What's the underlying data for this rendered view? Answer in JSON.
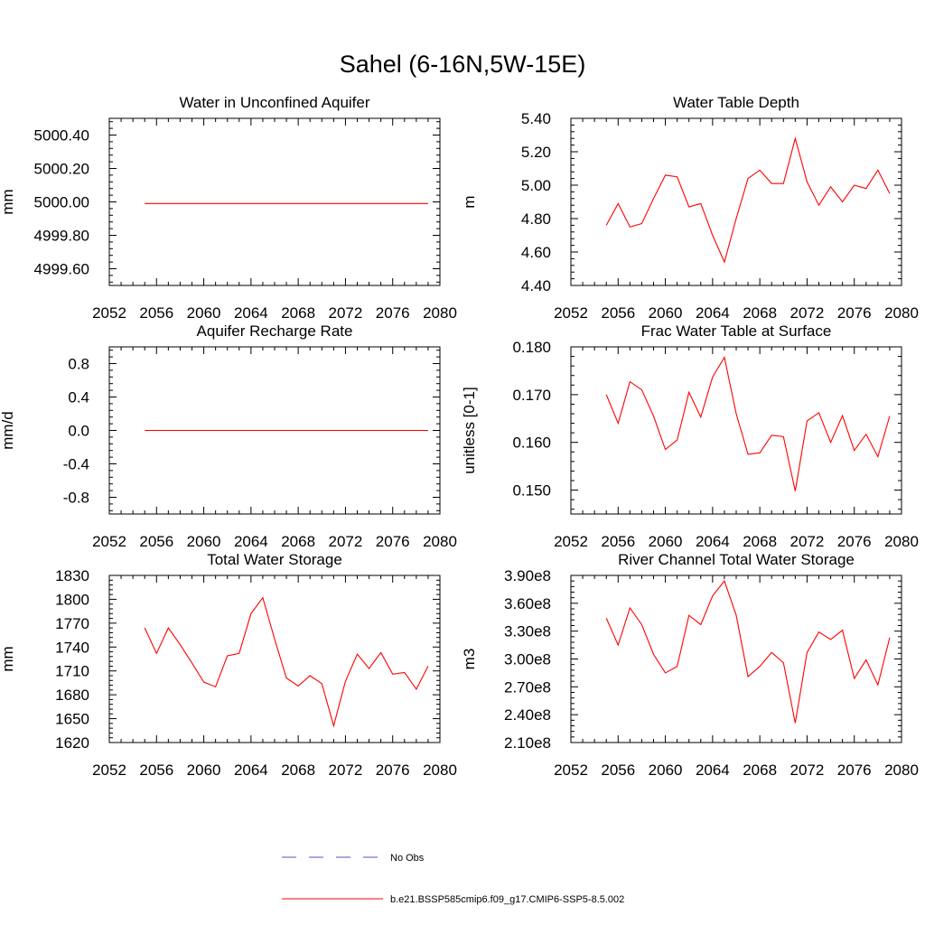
{
  "title": "Sahel (6-16N,5W-15E)",
  "chart_data": [
    {
      "type": "line",
      "title": "Water in Unconfined Aquifer",
      "ylabel": "mm",
      "xlim": [
        2052,
        2080
      ],
      "ylim": [
        4999.5,
        5000.5
      ],
      "xticks": [
        2052,
        2056,
        2060,
        2064,
        2068,
        2072,
        2076,
        2080
      ],
      "yticks": [
        4999.6,
        4999.8,
        5000.0,
        5000.2,
        5000.4
      ],
      "yticklabels": [
        "4999.60",
        "4999.80",
        "5000.00",
        "5000.20",
        "5000.40"
      ],
      "x": [
        2055,
        2056,
        2057,
        2058,
        2059,
        2060,
        2061,
        2062,
        2063,
        2064,
        2065,
        2066,
        2067,
        2068,
        2069,
        2070,
        2071,
        2072,
        2073,
        2074,
        2075,
        2076,
        2077,
        2078,
        2079
      ],
      "series": [
        {
          "name": "b.e21.BSSP585cmip6.f09_g17.CMIP6-SSP5-8.5.002",
          "color": "#ff0000",
          "values": [
            4999.99,
            4999.99,
            4999.99,
            4999.99,
            4999.99,
            4999.99,
            4999.99,
            4999.99,
            4999.99,
            4999.99,
            4999.99,
            4999.99,
            4999.99,
            4999.99,
            4999.99,
            4999.99,
            4999.99,
            4999.99,
            4999.99,
            4999.99,
            4999.99,
            4999.99,
            4999.99,
            4999.99,
            4999.99
          ]
        }
      ]
    },
    {
      "type": "line",
      "title": "Water Table Depth",
      "ylabel": "m",
      "xlim": [
        2052,
        2080
      ],
      "ylim": [
        4.4,
        5.4
      ],
      "xticks": [
        2052,
        2056,
        2060,
        2064,
        2068,
        2072,
        2076,
        2080
      ],
      "yticks": [
        4.4,
        4.6,
        4.8,
        5.0,
        5.2,
        5.4
      ],
      "yticklabels": [
        "4.40",
        "4.60",
        "4.80",
        "5.00",
        "5.20",
        "5.40"
      ],
      "x": [
        2055,
        2056,
        2057,
        2058,
        2059,
        2060,
        2061,
        2062,
        2063,
        2064,
        2065,
        2066,
        2067,
        2068,
        2069,
        2070,
        2071,
        2072,
        2073,
        2074,
        2075,
        2076,
        2077,
        2078,
        2079
      ],
      "series": [
        {
          "name": "b.e21.BSSP585cmip6.f09_g17.CMIP6-SSP5-8.5.002",
          "color": "#ff0000",
          "values": [
            4.76,
            4.89,
            4.75,
            4.77,
            4.92,
            5.06,
            5.05,
            4.87,
            4.89,
            4.7,
            4.54,
            4.8,
            5.04,
            5.09,
            5.01,
            5.01,
            5.28,
            5.02,
            4.88,
            4.99,
            4.9,
            5.0,
            4.98,
            5.09,
            4.95
          ]
        }
      ]
    },
    {
      "type": "line",
      "title": "Aquifer Recharge Rate",
      "ylabel": "mm/d",
      "xlim": [
        2052,
        2080
      ],
      "ylim": [
        -1.0,
        1.0
      ],
      "xticks": [
        2052,
        2056,
        2060,
        2064,
        2068,
        2072,
        2076,
        2080
      ],
      "yticks": [
        -0.8,
        -0.4,
        0.0,
        0.4,
        0.8
      ],
      "yticklabels": [
        "-0.8",
        "-0.4",
        "0.0",
        "0.4",
        "0.8"
      ],
      "x": [
        2055,
        2056,
        2057,
        2058,
        2059,
        2060,
        2061,
        2062,
        2063,
        2064,
        2065,
        2066,
        2067,
        2068,
        2069,
        2070,
        2071,
        2072,
        2073,
        2074,
        2075,
        2076,
        2077,
        2078,
        2079
      ],
      "series": [
        {
          "name": "b.e21.BSSP585cmip6.f09_g17.CMIP6-SSP5-8.5.002",
          "color": "#ff0000",
          "values": [
            0,
            0,
            0,
            0,
            0,
            0,
            0,
            0,
            0,
            0,
            0,
            0,
            0,
            0,
            0,
            0,
            0,
            0,
            0,
            0,
            0,
            0,
            0,
            0,
            0
          ]
        }
      ]
    },
    {
      "type": "line",
      "title": "Frac Water Table at Surface",
      "ylabel": "unitless [0-1]",
      "xlim": [
        2052,
        2080
      ],
      "ylim": [
        0.145,
        0.18
      ],
      "xticks": [
        2052,
        2056,
        2060,
        2064,
        2068,
        2072,
        2076,
        2080
      ],
      "yticks": [
        0.15,
        0.16,
        0.17,
        0.18
      ],
      "yticklabels": [
        "0.150",
        "0.160",
        "0.170",
        "0.180"
      ],
      "x": [
        2055,
        2056,
        2057,
        2058,
        2059,
        2060,
        2061,
        2062,
        2063,
        2064,
        2065,
        2066,
        2067,
        2068,
        2069,
        2070,
        2071,
        2072,
        2073,
        2074,
        2075,
        2076,
        2077,
        2078,
        2079
      ],
      "series": [
        {
          "name": "b.e21.BSSP585cmip6.f09_g17.CMIP6-SSP5-8.5.002",
          "color": "#ff0000",
          "values": [
            0.17,
            0.164,
            0.1727,
            0.171,
            0.1655,
            0.1585,
            0.1605,
            0.1705,
            0.1653,
            0.1737,
            0.1778,
            0.166,
            0.1575,
            0.1578,
            0.1615,
            0.1612,
            0.1498,
            0.1645,
            0.1662,
            0.16,
            0.1656,
            0.1583,
            0.1617,
            0.157,
            0.1655
          ]
        }
      ]
    },
    {
      "type": "line",
      "title": "Total Water Storage",
      "ylabel": "mm",
      "xlim": [
        2052,
        2080
      ],
      "ylim": [
        1620,
        1830
      ],
      "xticks": [
        2052,
        2056,
        2060,
        2064,
        2068,
        2072,
        2076,
        2080
      ],
      "yticks": [
        1620,
        1650,
        1680,
        1710,
        1740,
        1770,
        1800,
        1830
      ],
      "yticklabels": [
        "1620",
        "1650",
        "1680",
        "1710",
        "1740",
        "1770",
        "1800",
        "1830"
      ],
      "x": [
        2055,
        2056,
        2057,
        2058,
        2059,
        2060,
        2061,
        2062,
        2063,
        2064,
        2065,
        2066,
        2067,
        2068,
        2069,
        2070,
        2071,
        2072,
        2073,
        2074,
        2075,
        2076,
        2077,
        2078,
        2079
      ],
      "series": [
        {
          "name": "b.e21.BSSP585cmip6.f09_g17.CMIP6-SSP5-8.5.002",
          "color": "#ff0000",
          "values": [
            1764,
            1732,
            1764,
            1743,
            1720,
            1696,
            1690,
            1729,
            1732,
            1782,
            1802,
            1750,
            1701,
            1691,
            1704,
            1694,
            1641,
            1697,
            1731,
            1713,
            1733,
            1706,
            1708,
            1687,
            1716
          ]
        }
      ]
    },
    {
      "type": "line",
      "title": "River Channel Total Water Storage",
      "ylabel": "m3",
      "xlim": [
        2052,
        2080
      ],
      "ylim": [
        210000000,
        390000000
      ],
      "xticks": [
        2052,
        2056,
        2060,
        2064,
        2068,
        2072,
        2076,
        2080
      ],
      "yticks": [
        210000000,
        240000000,
        270000000,
        300000000,
        330000000,
        360000000,
        390000000
      ],
      "yticklabels": [
        "2.10e8",
        "2.40e8",
        "2.70e8",
        "3.00e8",
        "3.30e8",
        "3.60e8",
        "3.90e8"
      ],
      "x": [
        2055,
        2056,
        2057,
        2058,
        2059,
        2060,
        2061,
        2062,
        2063,
        2064,
        2065,
        2066,
        2067,
        2068,
        2069,
        2070,
        2071,
        2072,
        2073,
        2074,
        2075,
        2076,
        2077,
        2078,
        2079
      ],
      "series": [
        {
          "name": "b.e21.BSSP585cmip6.f09_g17.CMIP6-SSP5-8.5.002",
          "color": "#ff0000",
          "values": [
            344000000,
            315000000,
            355000000,
            337000000,
            305000000,
            285000000,
            292000000,
            347000000,
            337000000,
            368000000,
            384000000,
            347000000,
            281000000,
            292000000,
            307000000,
            296000000,
            231000000,
            307000000,
            329000000,
            321000000,
            331000000,
            279000000,
            299000000,
            272000000,
            323000000
          ]
        }
      ]
    }
  ],
  "legend": {
    "entries": [
      {
        "label": "No Obs",
        "style": "dashed",
        "color": "#5050c0"
      },
      {
        "label": "b.e21.BSSP585cmip6.f09_g17.CMIP6-SSP5-8.5.002",
        "style": "solid",
        "color": "#ff0000"
      }
    ]
  }
}
